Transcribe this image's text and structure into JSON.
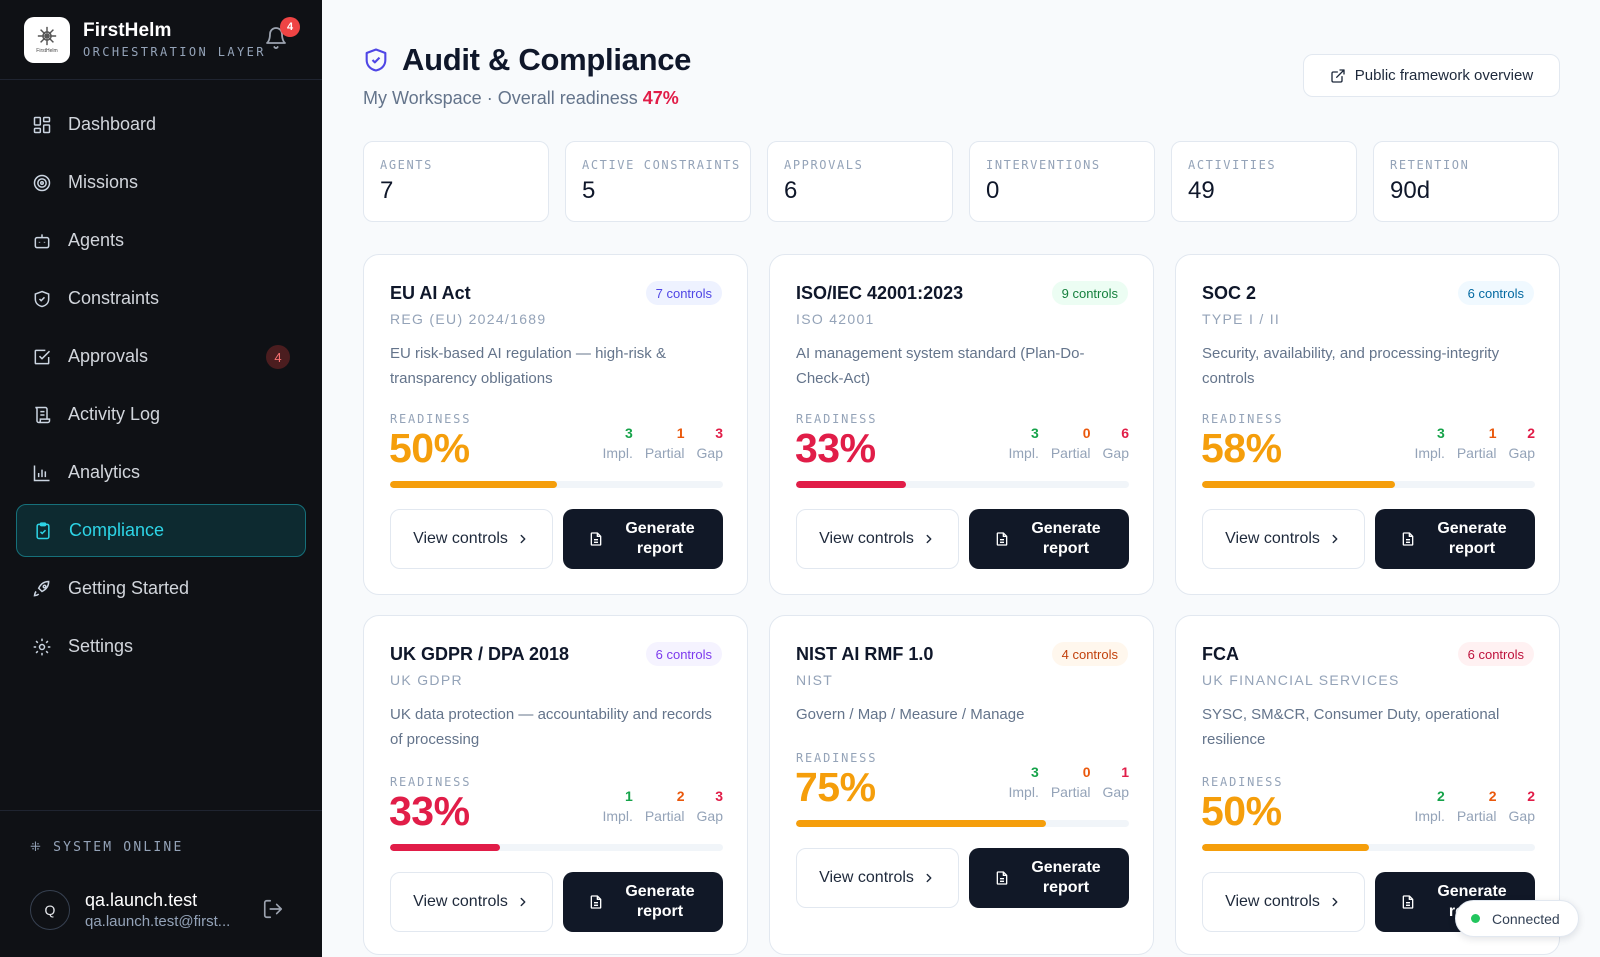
{
  "brand": {
    "name": "FirstHelm",
    "subtitle": "ORCHESTRATION LAYER",
    "logo_text": "FirstHelm",
    "notification_count": "4"
  },
  "nav": [
    {
      "label": "Dashboard",
      "icon": "dashboard-icon"
    },
    {
      "label": "Missions",
      "icon": "target-icon"
    },
    {
      "label": "Agents",
      "icon": "robot-icon"
    },
    {
      "label": "Constraints",
      "icon": "shield-icon"
    },
    {
      "label": "Approvals",
      "icon": "check-square-icon",
      "badge": "4"
    },
    {
      "label": "Activity Log",
      "icon": "scroll-icon"
    },
    {
      "label": "Analytics",
      "icon": "bar-chart-icon"
    },
    {
      "label": "Compliance",
      "icon": "clipboard-check-icon",
      "active": true
    },
    {
      "label": "Getting Started",
      "icon": "rocket-icon"
    },
    {
      "label": "Settings",
      "icon": "gear-icon"
    }
  ],
  "system_status": "⁜ SYSTEM ONLINE",
  "user": {
    "initial": "Q",
    "name": "qa.launch.test",
    "email": "qa.launch.test@first..."
  },
  "page": {
    "title": "Audit & Compliance",
    "subtitle_prefix": "My Workspace · Overall readiness ",
    "overall_readiness": "47%",
    "public_button": "Public framework overview"
  },
  "stats": [
    {
      "label": "AGENTS",
      "value": "7"
    },
    {
      "label": "ACTIVE CONSTRAINTS",
      "value": "5"
    },
    {
      "label": "APPROVALS",
      "value": "6"
    },
    {
      "label": "INTERVENTIONS",
      "value": "0"
    },
    {
      "label": "ACTIVITIES",
      "value": "49"
    },
    {
      "label": "RETENTION",
      "value": "90d"
    }
  ],
  "labels": {
    "readiness": "READINESS",
    "impl": "Impl.",
    "partial": "Partial",
    "gap": "Gap",
    "view_controls": "View controls",
    "generate_report": "Generate report"
  },
  "colors": {
    "orange": "#f59e0b",
    "red": "#e11d48",
    "green": "#16a34a",
    "gap_red": "#e11d48",
    "accent": "#2dd4e6"
  },
  "frameworks": [
    {
      "title": "EU AI Act",
      "controls": "7 controls",
      "pill_color": "#4f46e5",
      "pill_bg": "#eef2ff",
      "code": "REG (EU) 2024/1689",
      "desc": "EU risk-based AI regulation — high-risk & transparency obligations",
      "readiness": "50%",
      "fill": 0.5,
      "color": "#f59e0b",
      "impl": "3",
      "partial": "1",
      "gap": "3"
    },
    {
      "title": "ISO/IEC 42001:2023",
      "controls": "9 controls",
      "pill_color": "#15803d",
      "pill_bg": "#ecfdf3",
      "code": "ISO 42001",
      "desc": "AI management system standard (Plan-Do-Check-Act)",
      "readiness": "33%",
      "fill": 0.33,
      "color": "#e11d48",
      "impl": "3",
      "partial": "0",
      "gap": "6"
    },
    {
      "title": "SOC 2",
      "controls": "6 controls",
      "pill_color": "#0369a1",
      "pill_bg": "#f0f9ff",
      "code": "TYPE I / II",
      "desc": "Security, availability, and processing-integrity controls",
      "readiness": "58%",
      "fill": 0.58,
      "color": "#f59e0b",
      "impl": "3",
      "partial": "1",
      "gap": "2"
    },
    {
      "title": "UK GDPR / DPA 2018",
      "controls": "6 controls",
      "pill_color": "#7c3aed",
      "pill_bg": "#f5f3ff",
      "code": "UK GDPR",
      "desc": "UK data protection — accountability and records of processing",
      "readiness": "33%",
      "fill": 0.33,
      "color": "#e11d48",
      "impl": "1",
      "partial": "2",
      "gap": "3"
    },
    {
      "title": "NIST AI RMF 1.0",
      "controls": "4 controls",
      "pill_color": "#c2410c",
      "pill_bg": "#fff7ed",
      "code": "NIST",
      "desc": "Govern / Map / Measure / Manage",
      "readiness": "75%",
      "fill": 0.75,
      "color": "#f59e0b",
      "impl": "3",
      "partial": "0",
      "gap": "1"
    },
    {
      "title": "FCA",
      "controls": "6 controls",
      "pill_color": "#be123c",
      "pill_bg": "#fff1f2",
      "code": "UK FINANCIAL SERVICES",
      "desc": "SYSC, SM&CR, Consumer Duty, operational resilience",
      "readiness": "50%",
      "fill": 0.5,
      "color": "#f59e0b",
      "impl": "2",
      "partial": "2",
      "gap": "2"
    }
  ],
  "connection_status": "Connected"
}
